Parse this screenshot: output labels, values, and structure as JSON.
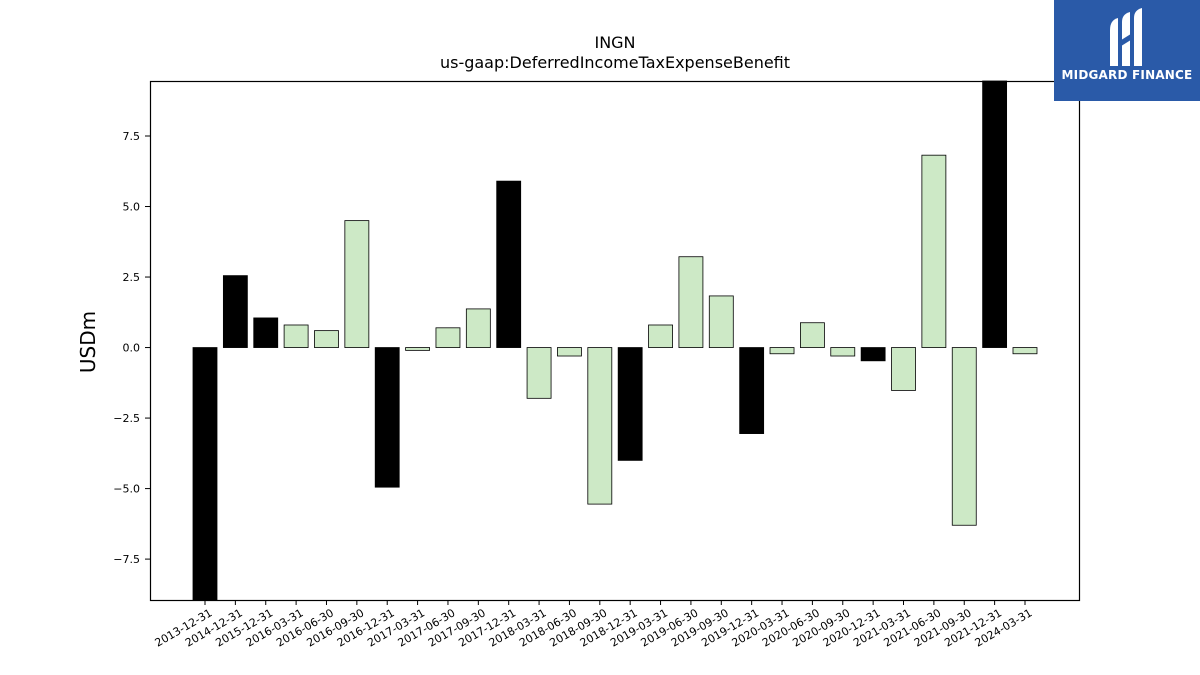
{
  "chart_data": {
    "type": "bar",
    "title": "INGN",
    "subtitle": "us-gaap:DeferredIncomeTaxExpenseBenefit",
    "xlabel": "",
    "ylabel": "USDm",
    "ylim": [
      -8.95,
      9.45
    ],
    "yticks": [
      -7.5,
      -5.0,
      -2.5,
      0.0,
      2.5,
      5.0,
      7.5
    ],
    "ytick_labels": [
      "−7.5",
      "−5.0",
      "−2.5",
      "0.0",
      "2.5",
      "5.0",
      "7.5"
    ],
    "grid": false,
    "categories": [
      "2013-12-31",
      "2014-12-31",
      "2015-12-31",
      "2016-03-31",
      "2016-06-30",
      "2016-09-30",
      "2016-12-31",
      "2017-03-31",
      "2017-06-30",
      "2017-09-30",
      "2017-12-31",
      "2018-03-31",
      "2018-06-30",
      "2018-09-30",
      "2018-12-31",
      "2019-03-31",
      "2019-06-30",
      "2019-09-30",
      "2019-12-31",
      "2020-03-31",
      "2020-06-30",
      "2020-09-30",
      "2020-12-31",
      "2021-03-31",
      "2021-06-30",
      "2021-09-30",
      "2021-12-31",
      "2024-03-31"
    ],
    "values": [
      -8.95,
      2.55,
      1.05,
      0.8,
      0.6,
      4.5,
      -4.95,
      -0.1,
      0.7,
      1.37,
      5.9,
      -1.8,
      -0.3,
      -5.55,
      -4.0,
      0.8,
      3.22,
      1.83,
      -3.05,
      -0.22,
      0.88,
      -0.3,
      -0.47,
      -1.52,
      6.82,
      -6.3,
      9.45,
      -0.22
    ],
    "series_colors": {
      "fiscal_year_end": "#000000",
      "quarter": "#cde9c6",
      "edge": "#000000"
    },
    "bar_kind": [
      "fiscal_year_end",
      "fiscal_year_end",
      "fiscal_year_end",
      "quarter",
      "quarter",
      "quarter",
      "fiscal_year_end",
      "quarter",
      "quarter",
      "quarter",
      "fiscal_year_end",
      "quarter",
      "quarter",
      "quarter",
      "fiscal_year_end",
      "quarter",
      "quarter",
      "quarter",
      "fiscal_year_end",
      "quarter",
      "quarter",
      "quarter",
      "fiscal_year_end",
      "quarter",
      "quarter",
      "quarter",
      "fiscal_year_end",
      "quarter"
    ]
  },
  "logo": {
    "brand_text": "MIDGARD FINANCE",
    "icon": "midgard-m-icon",
    "background": "#2a5aa8"
  }
}
